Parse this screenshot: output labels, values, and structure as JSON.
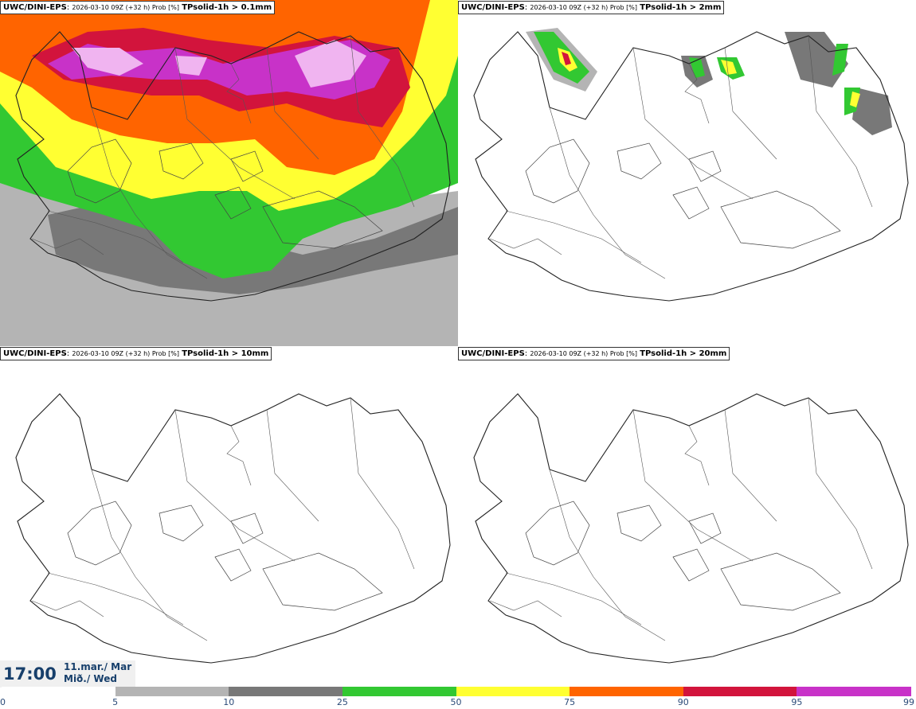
{
  "panels": [
    {
      "model": "UWC/DINI-EPS",
      "run": "2026-03-10 09Z (+32 h) Prob [%]",
      "param": "TPsolid-1h > 0.1mm"
    },
    {
      "model": "UWC/DINI-EPS",
      "run": "2026-03-10 09Z (+32 h) Prob [%]",
      "param": "TPsolid-1h > 2mm"
    },
    {
      "model": "UWC/DINI-EPS",
      "run": "2026-03-10 09Z (+32 h) Prob [%]",
      "param": "TPsolid-1h > 10mm"
    },
    {
      "model": "UWC/DINI-EPS",
      "run": "2026-03-10 09Z (+32 h) Prob [%]",
      "param": "TPsolid-1h > 20mm"
    }
  ],
  "valid_time": {
    "hour": "17:00",
    "date": "11.mar./ Mar",
    "weekday": "Mið./ Wed"
  },
  "colorbar": {
    "ticks": [
      "0",
      "5",
      "10",
      "25",
      "50",
      "75",
      "90",
      "95",
      "99"
    ],
    "colors": [
      "#ffffff",
      "#b4b4b4",
      "#787878",
      "#32c832",
      "#ffff32",
      "#ff6400",
      "#d2143c",
      "#c832c8",
      "#f0b4f0"
    ]
  }
}
